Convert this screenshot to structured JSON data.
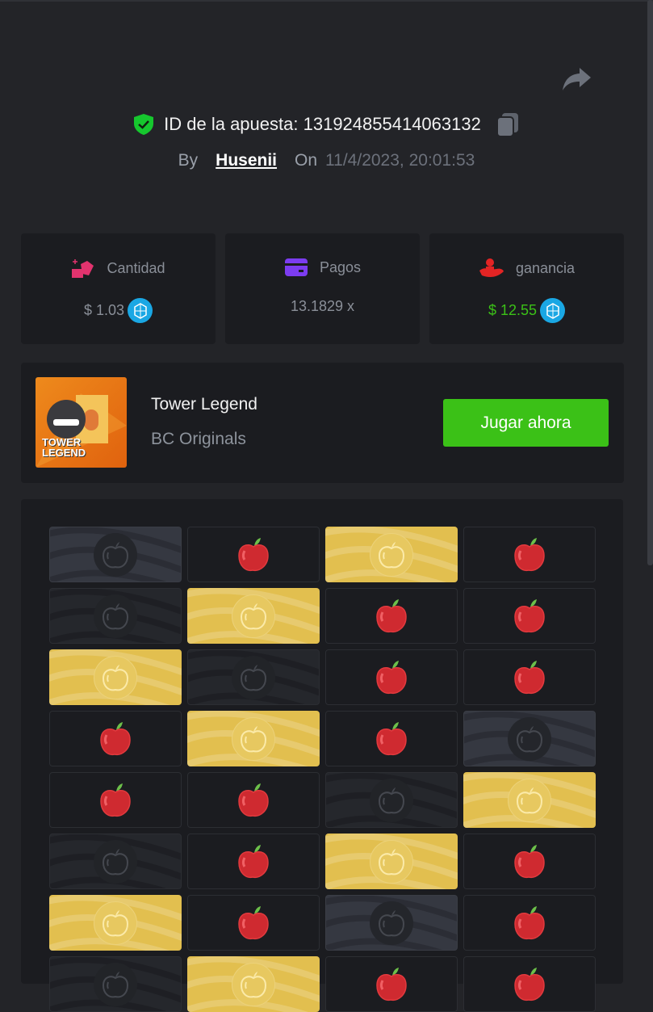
{
  "header": {
    "bet_id_label": "ID de la apuesta:",
    "bet_id": "131924855414063132",
    "by_label": "By",
    "username": "Husenii",
    "on_label": "On",
    "datetime": "11/4/2023, 20:01:53"
  },
  "stats": [
    {
      "label": "Cantidad",
      "value": "$ 1.03",
      "icon": "gem-hand-icon",
      "color": "#e2336e"
    },
    {
      "label": "Pagos",
      "value": "13.1829 x",
      "icon": "card-icon",
      "color": "#7c3cf0"
    },
    {
      "label": "ganancia",
      "value": "$ 12.55",
      "icon": "profit-hand-icon",
      "color": "#e32424",
      "value_color": "#3bc117"
    }
  ],
  "game": {
    "name": "Tower Legend",
    "provider": "BC Originals",
    "thumbnail_text": "TOWER LEGEND",
    "play_label": "Jugar ahora"
  },
  "board": {
    "rows": [
      [
        "darkhl",
        "apple",
        "gold",
        "apple"
      ],
      [
        "dark",
        "gold",
        "apple",
        "apple"
      ],
      [
        "gold",
        "dark",
        "apple",
        "apple"
      ],
      [
        "apple",
        "gold",
        "apple",
        "darkhl"
      ],
      [
        "apple",
        "apple",
        "dark",
        "gold"
      ],
      [
        "dark",
        "apple",
        "gold",
        "apple"
      ],
      [
        "gold",
        "apple",
        "darkhl",
        "apple"
      ],
      [
        "dark",
        "gold",
        "apple",
        "apple"
      ]
    ]
  }
}
